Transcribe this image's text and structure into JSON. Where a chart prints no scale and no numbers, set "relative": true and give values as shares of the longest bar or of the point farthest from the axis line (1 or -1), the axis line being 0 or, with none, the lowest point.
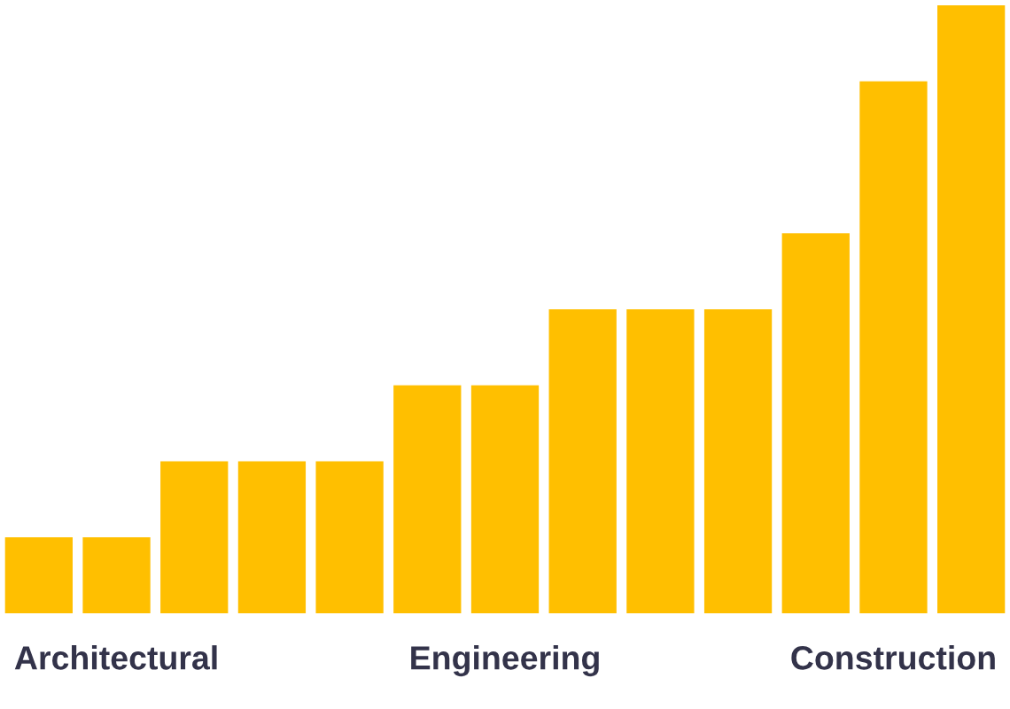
{
  "chart_data": {
    "type": "bar",
    "categories": [
      null,
      "Architectural",
      null,
      null,
      null,
      null,
      "Engineering",
      null,
      null,
      null,
      null,
      "Construction",
      null
    ],
    "values": [
      0.125,
      0.125,
      0.25,
      0.25,
      0.25,
      0.375,
      0.375,
      0.5,
      0.5,
      0.5,
      0.625,
      0.875,
      1
    ],
    "color": "#ffbf00",
    "relative": true
  }
}
